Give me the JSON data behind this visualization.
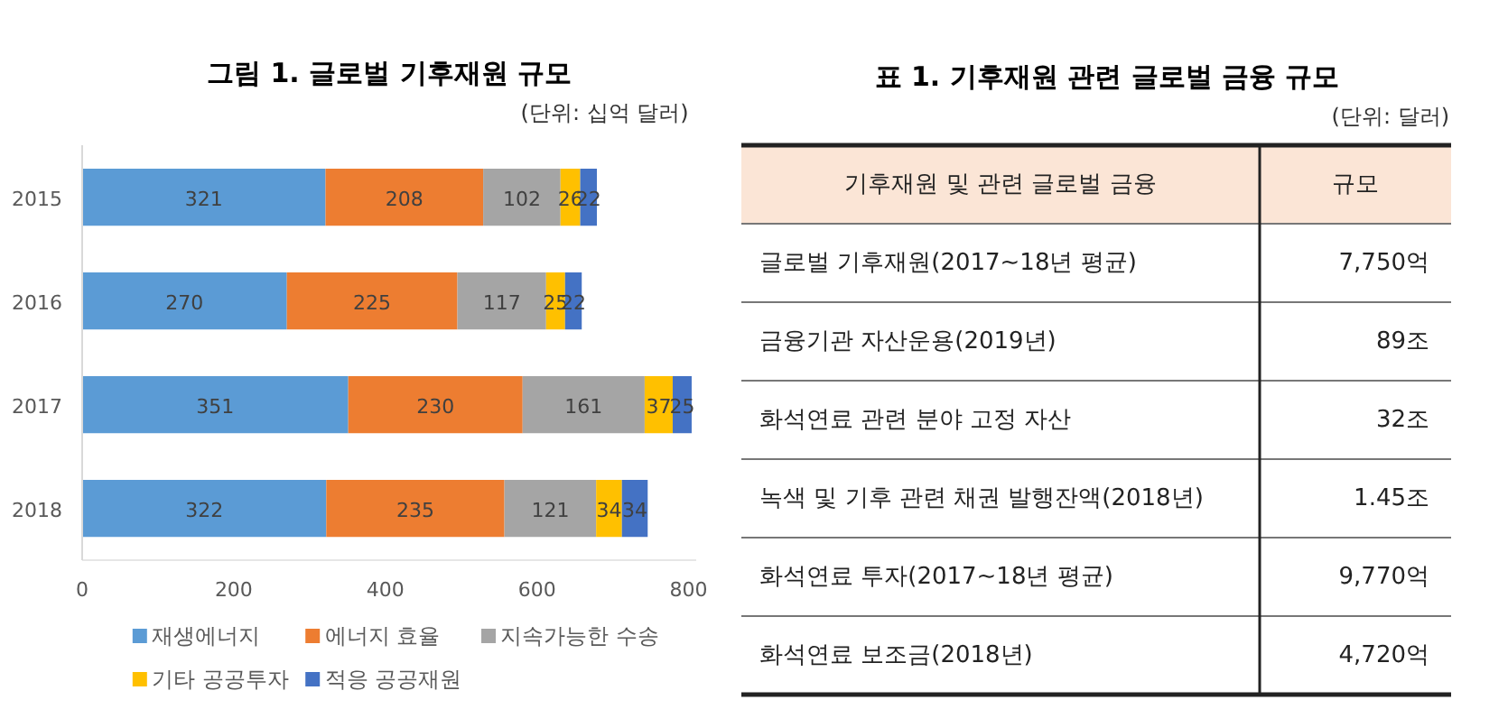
{
  "chart_data": [
    {
      "type": "bar",
      "orientation": "horizontal",
      "stacked": true,
      "title": "그림 1. 글로벌 기후재원 규모",
      "subtitle": "(단위: 십억 달러)",
      "categories": [
        "2015",
        "2016",
        "2017",
        "2018"
      ],
      "series": [
        {
          "name": "재생에너지",
          "color": "#5b9bd5",
          "values": [
            321,
            270,
            351,
            322
          ]
        },
        {
          "name": "에너지 효율",
          "color": "#ed7d31",
          "values": [
            208,
            225,
            230,
            235
          ]
        },
        {
          "name": "지속가능한 수송",
          "color": "#a5a5a5",
          "values": [
            102,
            117,
            161,
            121
          ]
        },
        {
          "name": "기타 공공투자",
          "color": "#ffc000",
          "values": [
            26,
            25,
            37,
            34
          ]
        },
        {
          "name": "적응 공공재원",
          "color": "#4472c4",
          "values": [
            22,
            22,
            25,
            34
          ]
        }
      ],
      "xlim": [
        0,
        810
      ],
      "xticks": [
        0,
        200,
        400,
        600,
        800
      ],
      "data_labels": true,
      "legend": "bottom",
      "grid": false
    },
    {
      "type": "other",
      "title": "표 1. 기후재원 관련 글로벌 금융 규모",
      "subtitle": "(단위: 달러)",
      "annotations": [
        "기후재원 및 관련 글로벌 금융",
        "규모",
        "글로벌 기후재원(2017~18년 평균)",
        "7,750억",
        "금융기관 자산운용(2019년)",
        "89조",
        "화석연료 관련 분야 고정 자산",
        "32조",
        "녹색 및 기후 관련 채권 발행잔액(2018년)",
        "1.45조",
        "화석연료 투자(2017~18년 평균)",
        "9,770억",
        "화석연료 보조금(2018년)",
        "4,720억"
      ]
    }
  ]
}
